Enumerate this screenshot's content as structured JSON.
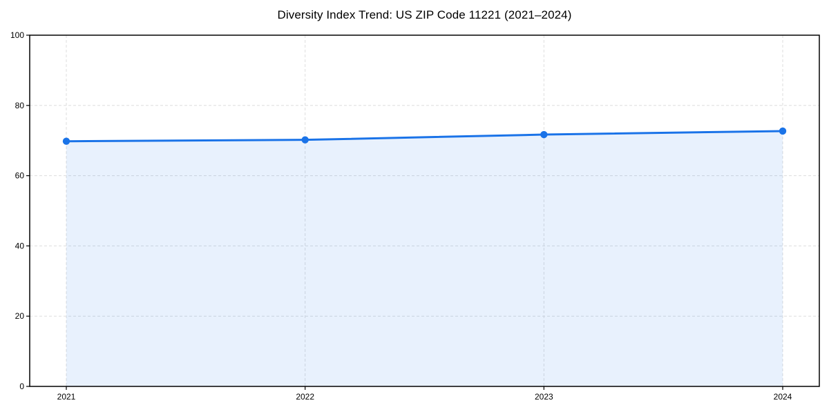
{
  "page": {
    "background": "#ffffff"
  },
  "chart_data": {
    "type": "line",
    "title": "Diversity Index Trend: US ZIP Code 11221 (2021–2024)",
    "xlabel": "",
    "ylabel": "",
    "categories": [
      "2021",
      "2022",
      "2023",
      "2024"
    ],
    "series": [
      {
        "name": "Diversity Index",
        "values": [
          69.8,
          70.2,
          71.7,
          72.7
        ]
      }
    ],
    "ylim": [
      0,
      100
    ],
    "yticks": [
      0,
      20,
      40,
      60,
      80,
      100
    ],
    "legend_position": "none",
    "grid": {
      "style": "dashed",
      "axes": "both"
    },
    "area_fill": true,
    "marker": "circle",
    "colors": {
      "line": "#1a73e8",
      "marker": "#1a73e8",
      "area_fill": "rgba(26,115,232,0.10)",
      "grid": "#dddddd",
      "spine": "#000000",
      "text": "#000000",
      "background": "#ffffff"
    }
  }
}
